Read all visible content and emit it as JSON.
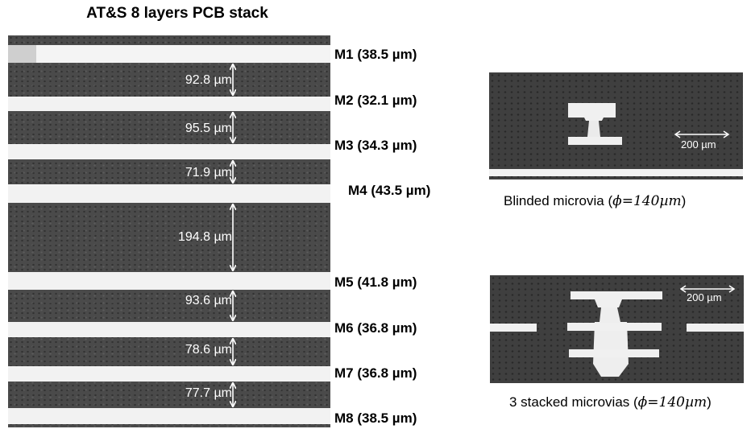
{
  "stack": {
    "title": "AT&S 8 layers PCB stack",
    "metals": [
      {
        "name": "M1 (38.5 µm)"
      },
      {
        "name": "M2 (32.1 µm)"
      },
      {
        "name": "M3 (34.3 µm)"
      },
      {
        "name": "M4 (43.5 µm)"
      },
      {
        "name": "M5 (41.8 µm)"
      },
      {
        "name": "M6 (36.8 µm)"
      },
      {
        "name": "M7 (36.8 µm)"
      },
      {
        "name": "M8 (38.5 µm)"
      }
    ],
    "dielectrics": [
      "92.8 µm",
      "95.5 µm",
      "71.9 µm",
      "194.8 µm",
      "93.6 µm",
      "78.6 µm",
      "77.7 µm"
    ]
  },
  "microvia_blind": {
    "caption_prefix": "Blinded microvia (",
    "caption_formula": "ϕ=140µm",
    "caption_suffix": ")",
    "scale_label": "200 µm"
  },
  "microvia_stacked": {
    "caption_prefix": "3 stacked microvias (",
    "caption_formula": "ϕ=140µm",
    "caption_suffix": ")",
    "scale_label": "200 µm"
  }
}
